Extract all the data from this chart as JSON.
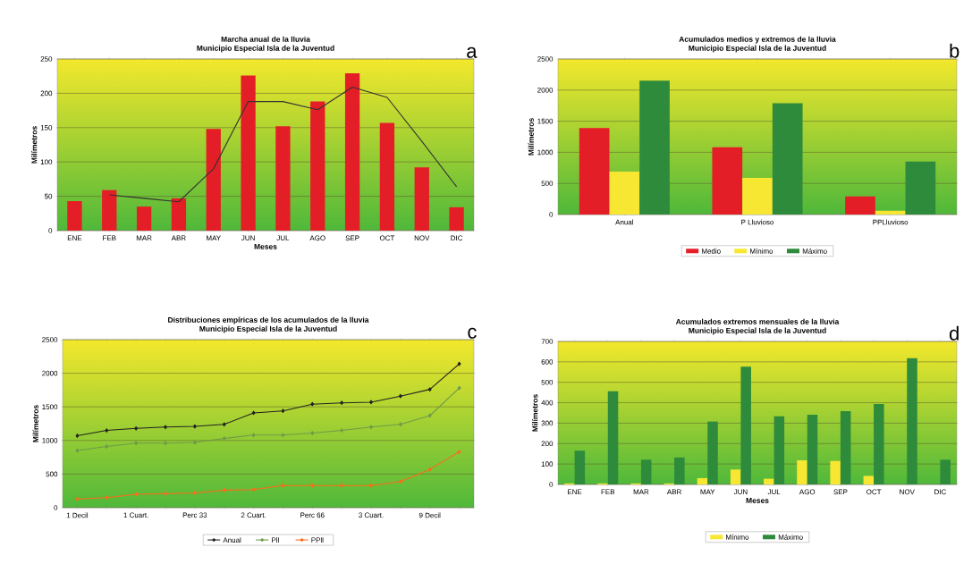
{
  "chart_data": [
    {
      "type": "bar",
      "title": "Marcha anual de la lluvia",
      "subtitle": "Municipio Especial Isla de la Juventud",
      "xlabel": "Meses",
      "ylabel": "Milímetros",
      "annotations": [
        "a"
      ],
      "categories": [
        "ENE",
        "FEB",
        "MAR",
        "ABR",
        "MAY",
        "JUN",
        "JUL",
        "AGO",
        "SEP",
        "OCT",
        "NOV",
        "DIC"
      ],
      "series": [
        {
          "color": "#e41e26",
          "values": [
            43,
            59,
            35,
            47,
            148,
            226,
            152,
            188,
            229,
            157,
            92,
            34
          ]
        },
        {
          "type": "line",
          "color": "#333333",
          "values": [
            null,
            52,
            47,
            42,
            90,
            188,
            188,
            176,
            209,
            194,
            130,
            64
          ]
        }
      ],
      "ylim": [
        0,
        250
      ],
      "yticks": [
        0,
        50,
        100,
        150,
        200,
        250
      ],
      "grid": "y"
    },
    {
      "type": "bar",
      "title": "Acumulados medios y extremos de la lluvia",
      "subtitle": "Municipio Especial Isla de la Juventud",
      "ylabel": "Milímetros",
      "annotations": [
        "b"
      ],
      "categories": [
        "Anual",
        "P Lluvioso",
        "PPLluvioso"
      ],
      "series": [
        {
          "name": "Medio",
          "color": "#e41e26",
          "values": [
            1390,
            1080,
            290
          ]
        },
        {
          "name": "Mínimo",
          "color": "#f7e733",
          "values": [
            690,
            590,
            60
          ]
        },
        {
          "name": "Máximo",
          "color": "#2e8b3c",
          "values": [
            2150,
            1790,
            850
          ]
        }
      ],
      "ylim": [
        0,
        2500
      ],
      "yticks": [
        0,
        500,
        1000,
        1500,
        2000,
        2500
      ],
      "grid": "y",
      "legend": "bottom"
    },
    {
      "type": "line",
      "title": "Distribuciones empíricas de los acumulados de la lluvia",
      "subtitle": "Municipio Especial Isla de la Juventud",
      "ylabel": "Milímetros",
      "annotations": [
        "c"
      ],
      "categories": [
        "1 Decil",
        null,
        "1 Cuart.",
        null,
        "Perc 33",
        null,
        "2 Cuart.",
        null,
        "Perc 66",
        null,
        "3 Cuart.",
        null,
        "9 Decil",
        null
      ],
      "series": [
        {
          "name": "Anual",
          "color": "#222222",
          "values": [
            1070,
            1150,
            1180,
            1200,
            1210,
            1240,
            1410,
            1440,
            1540,
            1560,
            1570,
            1660,
            1760,
            2140
          ]
        },
        {
          "name": "Pll",
          "color": "#6f9a4a",
          "values": [
            850,
            910,
            960,
            960,
            970,
            1030,
            1080,
            1080,
            1110,
            1150,
            1200,
            1240,
            1370,
            1780
          ]
        },
        {
          "name": "PPll",
          "color": "#ff6a1a",
          "values": [
            130,
            150,
            200,
            210,
            220,
            260,
            270,
            330,
            330,
            330,
            330,
            390,
            570,
            830
          ]
        }
      ],
      "ylim": [
        0,
        2500
      ],
      "yticks": [
        0,
        500,
        1000,
        1500,
        2000,
        2500
      ],
      "grid": "y",
      "legend": "bottom",
      "marker": "diamond"
    },
    {
      "type": "bar",
      "title": "Acumulados extremos mensuales de la lluvia",
      "subtitle": "Municipio Especial Isla de la Juventud",
      "xlabel": "Meses",
      "ylabel": "Milímetros",
      "annotations": [
        "d"
      ],
      "categories": [
        "ENE",
        "FEB",
        "MAR",
        "ABR",
        "MAY",
        "JUN",
        "JUL",
        "AGO",
        "SEP",
        "OCT",
        "NOV",
        "DIC"
      ],
      "series": [
        {
          "name": "Mínimo",
          "color": "#f7e733",
          "values": [
            5,
            5,
            5,
            5,
            31,
            73,
            28,
            118,
            115,
            42,
            0,
            0
          ]
        },
        {
          "name": "Máximo",
          "color": "#2e8b3c",
          "values": [
            165,
            456,
            121,
            132,
            308,
            576,
            334,
            341,
            359,
            394,
            618,
            121
          ]
        }
      ],
      "ylim": [
        0,
        700
      ],
      "yticks": [
        0,
        100,
        200,
        300,
        400,
        500,
        600,
        700
      ],
      "grid": "y",
      "legend": "bottom"
    }
  ]
}
